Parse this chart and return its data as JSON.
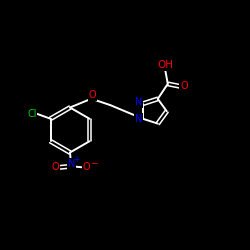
{
  "bg_color": "#000000",
  "bond_color": "#ffffff",
  "atom_colors": {
    "O": "#ff0000",
    "N_pyrazole": "#0000ff",
    "N_nitro": "#0000ff",
    "Cl": "#00cc00",
    "C": "#ffffff"
  },
  "figsize": [
    2.5,
    2.5
  ],
  "dpi": 100,
  "xlim": [
    0,
    10
  ],
  "ylim": [
    0,
    10
  ]
}
